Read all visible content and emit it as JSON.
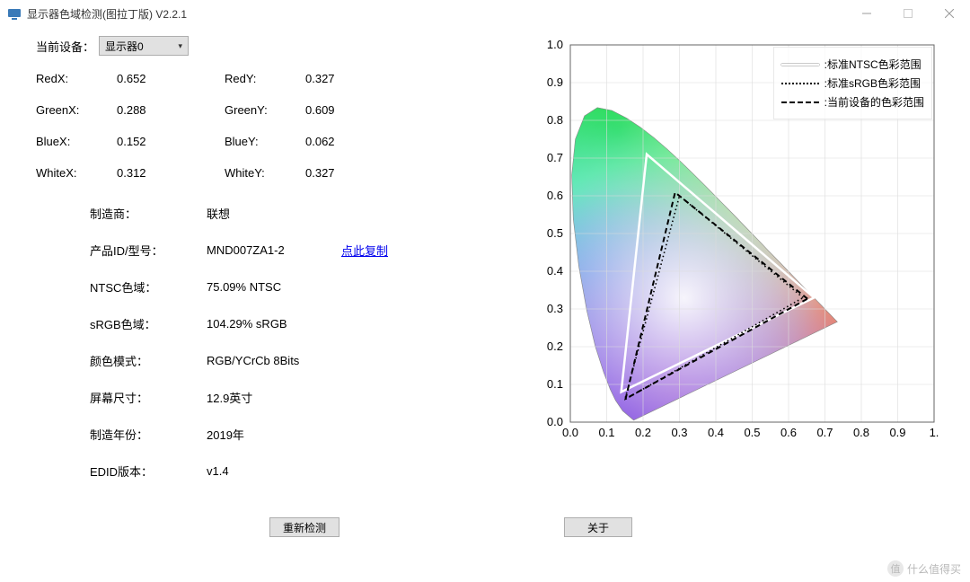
{
  "window": {
    "title": "显示器色域检测(图拉丁版) V2.2.1",
    "icon_color": "#3a7ab8"
  },
  "device": {
    "label": "当前设备：",
    "selected": "显示器0"
  },
  "coords": {
    "RedX": {
      "label": "RedX:",
      "value": "0.652"
    },
    "RedY": {
      "label": "RedY:",
      "value": "0.327"
    },
    "GreenX": {
      "label": "GreenX:",
      "value": "0.288"
    },
    "GreenY": {
      "label": "GreenY:",
      "value": "0.609"
    },
    "BlueX": {
      "label": "BlueX:",
      "value": "0.152"
    },
    "BlueY": {
      "label": "BlueY:",
      "value": "0.062"
    },
    "WhiteX": {
      "label": "WhiteX:",
      "value": "0.312"
    },
    "WhiteY": {
      "label": "WhiteY:",
      "value": "0.327"
    }
  },
  "info": {
    "manufacturer": {
      "label": "制造商：",
      "value": "联想"
    },
    "product_id": {
      "label": "产品ID/型号：",
      "value": "MND007ZA1-2"
    },
    "copy_link": "点此复制",
    "ntsc": {
      "label": "NTSC色域：",
      "value": "75.09% NTSC"
    },
    "srgb": {
      "label": "sRGB色域：",
      "value": "104.29% sRGB"
    },
    "color_mode": {
      "label": "颜色模式：",
      "value": "RGB/YCrCb 8Bits"
    },
    "screen_size": {
      "label": "屏幕尺寸：",
      "value": "12.9英寸"
    },
    "mfg_year": {
      "label": "制造年份：",
      "value": "2019年"
    },
    "edid": {
      "label": "EDID版本：",
      "value": "v1.4"
    }
  },
  "buttons": {
    "rescan": "重新检测",
    "about": "关于"
  },
  "chart": {
    "type": "cie1931",
    "xlim": [
      0.0,
      1.0
    ],
    "ylim": [
      0.0,
      1.0
    ],
    "tick_step": 0.1,
    "x_ticks": [
      "0.0",
      "0.1",
      "0.2",
      "0.3",
      "0.4",
      "0.5",
      "0.6",
      "0.7",
      "0.8",
      "0.9",
      "1."
    ],
    "y_ticks": [
      "0.0",
      "0.1",
      "0.2",
      "0.3",
      "0.4",
      "0.5",
      "0.6",
      "0.7",
      "0.8",
      "0.9",
      "1.0"
    ],
    "grid_color": "#dcdcdc",
    "axis_color": "#666666",
    "background_color": "#ffffff",
    "label_fontsize": 13,
    "locus_points": [
      [
        0.1741,
        0.005
      ],
      [
        0.144,
        0.0297
      ],
      [
        0.1241,
        0.0578
      ],
      [
        0.1096,
        0.0868
      ],
      [
        0.0913,
        0.1327
      ],
      [
        0.0687,
        0.2007
      ],
      [
        0.0454,
        0.295
      ],
      [
        0.0235,
        0.4127
      ],
      [
        0.0082,
        0.5384
      ],
      [
        0.0039,
        0.6548
      ],
      [
        0.0139,
        0.7502
      ],
      [
        0.0389,
        0.812
      ],
      [
        0.0743,
        0.8338
      ],
      [
        0.1142,
        0.8262
      ],
      [
        0.1547,
        0.8059
      ],
      [
        0.1929,
        0.7816
      ],
      [
        0.2296,
        0.7543
      ],
      [
        0.2658,
        0.7243
      ],
      [
        0.3016,
        0.6923
      ],
      [
        0.3373,
        0.6589
      ],
      [
        0.3731,
        0.6245
      ],
      [
        0.4087,
        0.5896
      ],
      [
        0.4441,
        0.5547
      ],
      [
        0.4788,
        0.5202
      ],
      [
        0.5125,
        0.4866
      ],
      [
        0.5448,
        0.4544
      ],
      [
        0.5752,
        0.4242
      ],
      [
        0.6029,
        0.3965
      ],
      [
        0.627,
        0.3725
      ],
      [
        0.6482,
        0.3514
      ],
      [
        0.6658,
        0.334
      ],
      [
        0.6801,
        0.3197
      ],
      [
        0.6915,
        0.3083
      ],
      [
        0.7006,
        0.2993
      ],
      [
        0.714,
        0.2859
      ],
      [
        0.726,
        0.274
      ],
      [
        0.734,
        0.266
      ]
    ],
    "triangles": {
      "ntsc": {
        "label": ":标准NTSC色彩范围",
        "stroke": "#ffffff",
        "stroke_width": 2.5,
        "dash": "none",
        "points": [
          [
            0.67,
            0.33
          ],
          [
            0.21,
            0.71
          ],
          [
            0.14,
            0.08
          ]
        ]
      },
      "srgb": {
        "label": ":标准sRGB色彩范围",
        "stroke": "#000000",
        "stroke_width": 1.6,
        "dash": "1.5 3",
        "points": [
          [
            0.64,
            0.33
          ],
          [
            0.3,
            0.6
          ],
          [
            0.15,
            0.06
          ]
        ]
      },
      "device": {
        "label": ":当前设备的色彩范围",
        "stroke": "#000000",
        "stroke_width": 2,
        "dash": "6 4",
        "points": [
          [
            0.652,
            0.327
          ],
          [
            0.288,
            0.609
          ],
          [
            0.152,
            0.062
          ]
        ]
      }
    },
    "gradient_stops": {
      "red": "#ff0000",
      "yellow": "#ffff00",
      "green": "#00d000",
      "cyan": "#00e0e0",
      "blue": "#2000ff",
      "violet": "#6000c0",
      "white": "#ffffff"
    }
  },
  "watermark": {
    "text": "什么值得买",
    "icon": "值"
  }
}
